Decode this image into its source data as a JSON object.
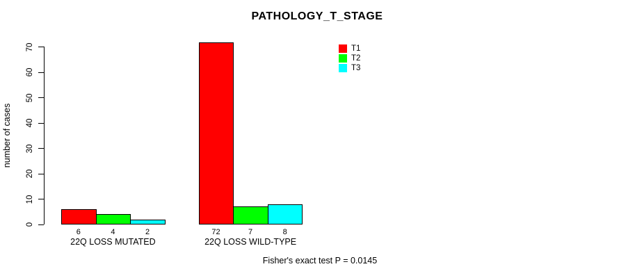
{
  "chart_data": {
    "type": "bar",
    "title": "PATHOLOGY_T_STAGE",
    "xlabel": "",
    "ylabel": "number of cases",
    "ylim": [
      0,
      70
    ],
    "yticks": [
      0,
      10,
      20,
      30,
      40,
      50,
      60,
      70
    ],
    "categories": [
      "22Q LOSS MUTATED",
      "22Q LOSS WILD-TYPE"
    ],
    "series": [
      {
        "name": "T1",
        "color": "#FF0000",
        "values": [
          6,
          72
        ]
      },
      {
        "name": "T2",
        "color": "#00FF00",
        "values": [
          4,
          7
        ]
      },
      {
        "name": "T3",
        "color": "#00FFFF",
        "values": [
          2,
          8
        ]
      }
    ],
    "bar_value_labels": [
      [
        "6",
        "4",
        "2"
      ],
      [
        "72",
        "7",
        "8"
      ]
    ],
    "legend_position": "top-right-inside",
    "grid": false,
    "annotation": "Fisher's exact test P = 0.0145"
  }
}
